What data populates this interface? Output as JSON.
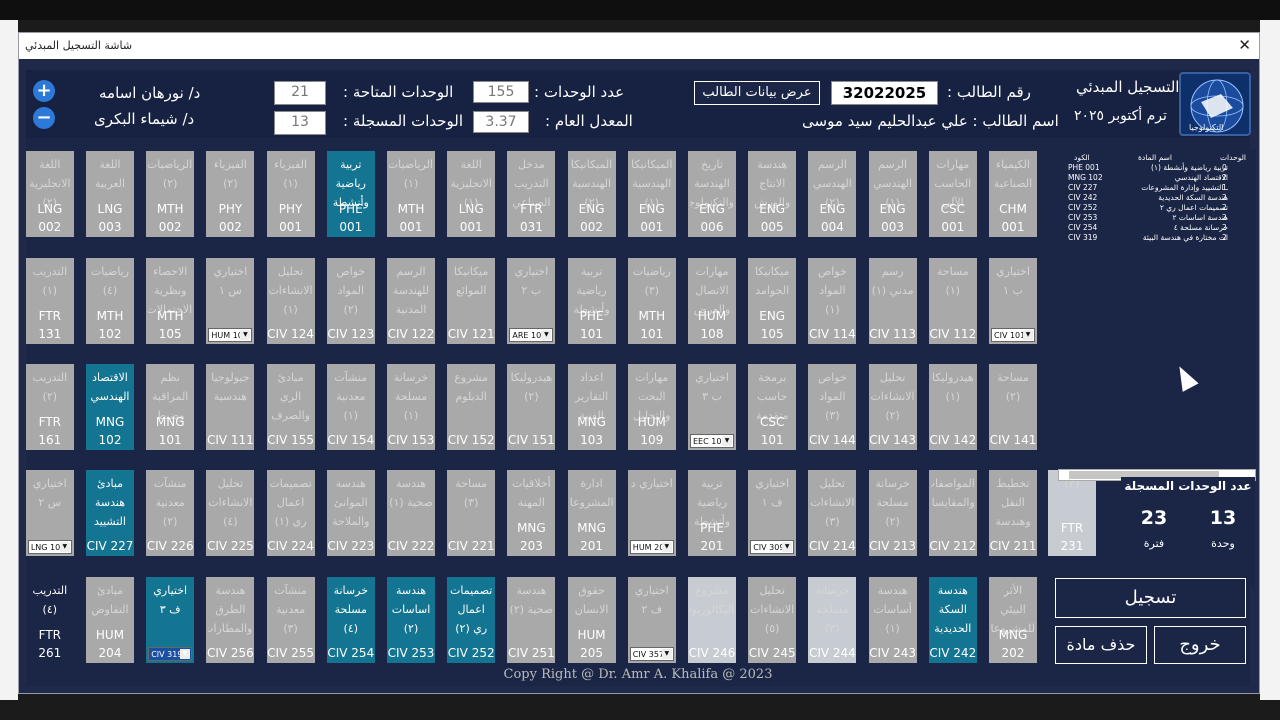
{
  "window": {
    "title": "شاشة التسجيل المبدئي",
    "close": "✕"
  },
  "header": {
    "logo_text": "التكنولوجيا",
    "screen_title": "التسجيل المبدئي",
    "term": "ترم أكتوبر ٢٠٢٥",
    "student_no_label": "رقم الطالب :",
    "student_no": "32022025",
    "show_data_btn": "عرض بيانات الطالب",
    "student_name_label": "اسم الطالب : علي عبدالحليم سيد موسى",
    "units_count_label": "عدد الوحدات :",
    "units_count": "155",
    "gpa_label": "المعدل العام :",
    "gpa": "3.37",
    "available_label": "الوحدات المتاحة :",
    "available": "21",
    "registered_label": "الوحدات المسجلة :",
    "registered": "13",
    "advisor1": "د/ نورهان اسامه",
    "advisor2": "د/ شيماء البكرى",
    "plus": "+",
    "minus": "−"
  },
  "grid": [
    [
      {
        "ar": "الكيمياء الصناعية",
        "code": "CHM 001"
      },
      {
        "ar": "مهارات الحاسب الآلي",
        "code": "CSC 001"
      },
      {
        "ar": "الرسم الهندسي (١)",
        "code": "ENG 003"
      },
      {
        "ar": "الرسم الهندسي (٢)",
        "code": "ENG 004"
      },
      {
        "ar": "هندسة الانتاج والورش",
        "code": "ENG 005"
      },
      {
        "ar": "تاريخ الهندسة والتكنولوجيا",
        "code": "ENG 006"
      },
      {
        "ar": "الميكانيكا الهندسية (١)",
        "code": "ENG 001"
      },
      {
        "ar": "الميكانيكا الهندسية (٢)",
        "code": "ENG 002"
      },
      {
        "ar": "مدخل التدريب الصناعي",
        "code": "FTR 031"
      },
      {
        "ar": "اللغة الانجليزية (١)",
        "code": "LNG 001"
      },
      {
        "ar": "الرياضيات (١)",
        "code": "MTH 001"
      },
      {
        "ar": "تربية رياضية وأنشطة (١)",
        "code": "PHE 001",
        "state": "on"
      },
      {
        "ar": "الفيزياء (١)",
        "code": "PHY 001"
      },
      {
        "ar": "الفيزياء (٢)",
        "code": "PHY 002"
      },
      {
        "ar": "الرياضيات (٢)",
        "code": "MTH 002"
      },
      {
        "ar": "اللغة العربية",
        "code": "LNG 003"
      },
      {
        "ar": "اللغة الانجليزية (٢)",
        "code": "LNG 002"
      }
    ],
    [
      {
        "ar": "اختياري ب ١",
        "drop": "CIV 101"
      },
      {
        "ar": "مساحة (١)",
        "code": "CIV 112"
      },
      {
        "ar": "رسم مدني (١)",
        "code": "CIV 113"
      },
      {
        "ar": "خواص المواد (١)",
        "code": "CIV 114"
      },
      {
        "ar": "ميكانيكا الجوامد",
        "code": "ENG 105"
      },
      {
        "ar": "مهارات الاتصال والعرض",
        "code": "HUM 108"
      },
      {
        "ar": "رياضيات (٣)",
        "code": "MTH 101"
      },
      {
        "ar": "تربية رياضية وأنشطة (٢)",
        "code": "PHE 101"
      },
      {
        "ar": "اختياري ب ٢",
        "drop": "ARE 101"
      },
      {
        "ar": "ميكانيكا الموائع",
        "code": "CIV 121"
      },
      {
        "ar": "الرسم للهندسة المدنية (٢)",
        "code": "CIV 122"
      },
      {
        "ar": "خواص المواد (٢)",
        "code": "CIV 123"
      },
      {
        "ar": "تحليل الانشاءات (١)",
        "code": "CIV 124"
      },
      {
        "ar": "اختياري س ١",
        "drop": "HUM 101"
      },
      {
        "ar": "الاحصاء ونظرية الاحتمالات",
        "code": "MTH 105"
      },
      {
        "ar": "رياضيات (٤)",
        "code": "MTH 102"
      },
      {
        "ar": "التدريب (١)",
        "code": "FTR 131"
      }
    ],
    [
      {
        "ar": "مساحة (٢)",
        "code": "CIV 141"
      },
      {
        "ar": "هيدروليكا (١)",
        "code": "CIV 142"
      },
      {
        "ar": "تحليل الانشاءات (٢)",
        "code": "CIV 143"
      },
      {
        "ar": "خواص المواد (٣)",
        "code": "CIV 144"
      },
      {
        "ar": "برمجة حاسب متقدمة",
        "code": "CSC 101"
      },
      {
        "ar": "اختياري ب ٣",
        "drop": "EEC 101"
      },
      {
        "ar": "مهارات البحث والتحليل",
        "code": "HUM 109"
      },
      {
        "ar": "اعداد التقارير الفنية",
        "code": "MNG 103"
      },
      {
        "ar": "هيدروليكا (٢)",
        "code": "CIV 151"
      },
      {
        "ar": "مشروع الدبلوم",
        "code": "CIV 152"
      },
      {
        "ar": "خرسانة مسلحة (١)",
        "code": "CIV 153"
      },
      {
        "ar": "منشآت معدنية (١)",
        "code": "CIV 154"
      },
      {
        "ar": "مبادئ الري والصرف",
        "code": "CIV 155"
      },
      {
        "ar": "جيولوجيا هندسية",
        "code": "CIV 111"
      },
      {
        "ar": "نظم المراقبة وضبط الجودة",
        "code": "MNG 101"
      },
      {
        "ar": "الاقتصاد الهندسي",
        "code": "MNG 102",
        "state": "on"
      },
      {
        "ar": "التدريب (٢)",
        "code": "FTR 161"
      }
    ],
    [
      {
        "ar": "تخطيط النقل وهندسة المرور",
        "code": "CIV 211"
      },
      {
        "ar": "المواصفات والمقايسات",
        "code": "CIV 212"
      },
      {
        "ar": "خرسانة مسلحة (٢)",
        "code": "CIV 213"
      },
      {
        "ar": "تحليل الانشاءات (٣)",
        "code": "CIV 214"
      },
      {
        "ar": "اختياري ف ١",
        "drop": "CIV 309"
      },
      {
        "ar": "تربية رياضية وأنشطة (٣)",
        "code": "PHE 201"
      },
      {
        "ar": "اختياري د",
        "drop": "HUM 201"
      },
      {
        "ar": "ادارة المشروعات",
        "code": "MNG 201"
      },
      {
        "ar": "أخلاقيات المهنة",
        "code": "MNG 203"
      },
      {
        "ar": "مساحة (٣)",
        "code": "CIV 221"
      },
      {
        "ar": "هندسة صحية (١)",
        "code": "CIV 222"
      },
      {
        "ar": "هندسة الموانئ والملاحة",
        "code": "CIV 223"
      },
      {
        "ar": "تصميمات اعمال ري (١)",
        "code": "CIV 224"
      },
      {
        "ar": "تحليل الانشاءات (٤)",
        "code": "CIV 225"
      },
      {
        "ar": "منشآت معدنية (٢)",
        "code": "CIV 226"
      },
      {
        "ar": "مبادئ هندسة التشييد",
        "code": "CIV 227",
        "state": "on"
      },
      {
        "ar": "اختياري س ٢",
        "drop": "LNG 102"
      },
      {
        "ar": "(٣)",
        "code": "FTR 231",
        "state": "light"
      }
    ],
    [
      {
        "ar": "الأثر البيئي للمشروعات",
        "code": "MNG 202"
      },
      {
        "ar": "هندسة السكة الحديدية",
        "code": "CIV 242",
        "state": "on"
      },
      {
        "ar": "هندسة أساسات (١)",
        "code": "CIV 243"
      },
      {
        "ar": "خرسانة مسلحة (٣)",
        "code": "CIV 244",
        "state": "light"
      },
      {
        "ar": "تحليل الانشاءات (٥)",
        "code": "CIV 245"
      },
      {
        "ar": "مشروع البكالوريوس",
        "code": "CIV 246",
        "state": "light"
      },
      {
        "ar": "اختياري ف ٢",
        "drop": "CIV 357"
      },
      {
        "ar": "حقوق الانسان",
        "code": "HUM 205"
      },
      {
        "ar": "هندسة صحية (٢)",
        "code": "CIV 251"
      },
      {
        "ar": "تصميمات اعمال ري (٢)",
        "code": "CIV 252",
        "state": "on"
      },
      {
        "ar": "هندسة اساسات (٢)",
        "code": "CIV 253",
        "state": "on"
      },
      {
        "ar": "خرسانة مسلحة (٤)",
        "code": "CIV 254",
        "state": "on"
      },
      {
        "ar": "منشآت معدنية (٣)",
        "code": "CIV 255"
      },
      {
        "ar": "هندسة الطرق والمطارات",
        "code": "CIV 256"
      },
      {
        "ar": "اختياري ف ٣",
        "drop": "CIV 319",
        "state": "on",
        "dropsel": true
      },
      {
        "ar": "مبادئ التفاوض",
        "code": "HUM 204"
      },
      {
        "ar": "التدريب (٤)",
        "code": "FTR 261",
        "state": "dark"
      }
    ]
  ],
  "list": {
    "headers": {
      "units": "الوحدات",
      "name": "اسم المادة",
      "code": "الكود"
    },
    "rows": [
      {
        "units": "0",
        "name": "تربية رياضية وأنشطة (١)",
        "code": "PHE 001"
      },
      {
        "units": "2",
        "name": "الاقتصاد الهندسي",
        "code": "MNG 102"
      },
      {
        "units": "1",
        "name": "ـ التشييد وإدارة المشروعات",
        "code": "CIV 227"
      },
      {
        "units": "2",
        "name": "هندسة السكة الحديدية",
        "code": "CIV 242"
      },
      {
        "units": "2",
        "name": "تصميمات اعمال ري ٢",
        "code": "CIV 252"
      },
      {
        "units": "2",
        "name": "هندسة اساسات ٢",
        "code": "CIV 253"
      },
      {
        "units": "2",
        "name": "خرسانة مسلحة ٤",
        "code": "CIV 254"
      },
      {
        "units": "2",
        "name": "ات مختارة في هندسة البيئة",
        "code": "CIV 319"
      }
    ]
  },
  "summary": {
    "title": "عدد الوحدات المسجلة",
    "units_value": "13",
    "units_label": "وحدة",
    "courses_value": "23",
    "courses_label": "فترة"
  },
  "buttons": {
    "register": "تسجيل",
    "delete": "حذف مادة",
    "exit": "خروج"
  },
  "footer": "Copy Right @ Dr. Amr A. Khalifa @ 2023"
}
